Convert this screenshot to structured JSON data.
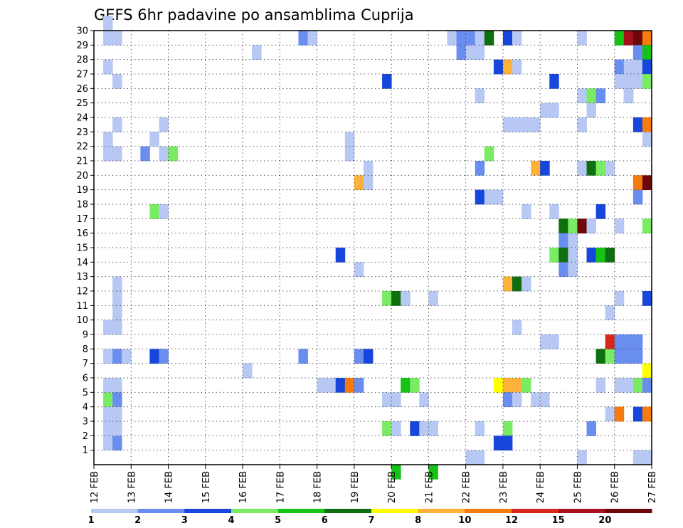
{
  "chart_data": {
    "type": "heatmap",
    "title": "GEFS 6hr padavine po ansamblima Cuprija",
    "xlabel": "",
    "ylabel": "",
    "x_labels": [
      "12 FEB",
      "13 FEB",
      "14 FEB",
      "15 FEB",
      "16 FEB",
      "17 FEB",
      "18 FEB",
      "19 FEB",
      "20 FEB",
      "21 FEB",
      "22 FEB",
      "23 FEB",
      "24 FEB",
      "25 FEB",
      "26 FEB",
      "27 FEB"
    ],
    "y_labels": [
      "1",
      "2",
      "3",
      "4",
      "5",
      "6",
      "7",
      "8",
      "9",
      "10",
      "11",
      "12",
      "13",
      "14",
      "15",
      "16",
      "17",
      "18",
      "19",
      "20",
      "21",
      "22",
      "23",
      "24",
      "25",
      "26",
      "27",
      "28",
      "29",
      "30"
    ],
    "x_range": [
      0,
      60
    ],
    "y_range": [
      0,
      30
    ],
    "grid": true,
    "colorbar": {
      "labels": [
        "1",
        "2",
        "3",
        "4",
        "5",
        "6",
        "7",
        "8",
        "10",
        "12",
        "15",
        "20"
      ],
      "colors": [
        "#b8c8f4",
        "#6a8ef0",
        "#1746dc",
        "#7aec64",
        "#17c217",
        "#0f6e0f",
        "#ffff00",
        "#ffb23a",
        "#f57a10",
        "#d8281c",
        "#a5101a",
        "#6e0808"
      ]
    },
    "cells": [
      [
        1,
        30,
        0
      ],
      [
        1,
        29,
        0
      ],
      [
        2,
        29,
        0
      ],
      [
        1,
        27,
        0
      ],
      [
        2,
        26,
        0
      ],
      [
        2,
        23,
        0
      ],
      [
        1,
        22,
        0
      ],
      [
        1,
        21,
        0
      ],
      [
        2,
        21,
        0
      ],
      [
        1,
        4,
        3
      ],
      [
        1,
        3,
        0
      ],
      [
        1,
        2,
        0
      ],
      [
        1,
        1,
        0
      ],
      [
        2,
        1,
        1
      ],
      [
        1,
        5,
        0
      ],
      [
        2,
        5,
        0
      ],
      [
        2,
        4,
        1
      ],
      [
        2,
        3,
        0
      ],
      [
        2,
        2,
        0
      ],
      [
        1,
        7,
        0
      ],
      [
        2,
        7,
        1
      ],
      [
        3,
        7,
        0
      ],
      [
        1,
        9,
        0
      ],
      [
        2,
        9,
        0
      ],
      [
        2,
        10,
        0
      ],
      [
        2,
        11,
        0
      ],
      [
        2,
        12,
        0
      ],
      [
        7,
        23,
        0
      ],
      [
        6,
        22,
        0
      ],
      [
        5,
        21,
        1
      ],
      [
        7,
        21,
        0
      ],
      [
        8,
        21,
        3
      ],
      [
        6,
        17,
        3
      ],
      [
        7,
        17,
        0
      ],
      [
        6,
        7,
        2
      ],
      [
        7,
        7,
        1
      ],
      [
        17,
        28,
        0
      ],
      [
        16,
        6,
        0
      ],
      [
        22,
        29,
        1
      ],
      [
        23,
        29,
        0
      ],
      [
        22,
        7,
        1
      ],
      [
        24,
        5,
        0
      ],
      [
        25,
        5,
        0
      ],
      [
        26,
        5,
        2
      ],
      [
        27,
        5,
        8
      ],
      [
        28,
        5,
        1
      ],
      [
        26,
        14,
        2
      ],
      [
        27,
        21,
        0
      ],
      [
        27,
        22,
        0
      ],
      [
        28,
        19,
        7
      ],
      [
        29,
        19,
        0
      ],
      [
        29,
        20,
        0
      ],
      [
        28,
        13,
        0
      ],
      [
        28,
        7,
        1
      ],
      [
        29,
        7,
        2
      ],
      [
        31,
        26,
        2
      ],
      [
        31,
        11,
        3
      ],
      [
        32,
        11,
        5
      ],
      [
        33,
        11,
        0
      ],
      [
        31,
        4,
        0
      ],
      [
        32,
        4,
        0
      ],
      [
        31,
        2,
        3
      ],
      [
        32,
        2,
        0
      ],
      [
        32,
        -1,
        4
      ],
      [
        33,
        5,
        4
      ],
      [
        34,
        5,
        3
      ],
      [
        34,
        2,
        2
      ],
      [
        35,
        2,
        0
      ],
      [
        36,
        2,
        0
      ],
      [
        35,
        4,
        0
      ],
      [
        36,
        11,
        0
      ],
      [
        36,
        -1,
        4
      ],
      [
        38,
        29,
        0
      ],
      [
        39,
        29,
        1
      ],
      [
        40,
        29,
        1
      ],
      [
        41,
        29,
        0
      ],
      [
        39,
        28,
        1
      ],
      [
        40,
        28,
        0
      ],
      [
        41,
        25,
        0
      ],
      [
        41,
        20,
        1
      ],
      [
        41,
        18,
        2
      ],
      [
        42,
        18,
        0
      ],
      [
        43,
        18,
        0
      ],
      [
        41,
        2,
        0
      ],
      [
        41,
        0,
        0
      ],
      [
        40,
        0,
        0
      ],
      [
        42,
        21,
        3
      ],
      [
        41,
        28,
        0
      ],
      [
        42,
        29,
        5
      ],
      [
        43,
        27,
        2
      ],
      [
        44,
        27,
        7
      ],
      [
        45,
        27,
        0
      ],
      [
        44,
        29,
        2
      ],
      [
        45,
        29,
        0
      ],
      [
        44,
        23,
        0
      ],
      [
        45,
        23,
        0
      ],
      [
        46,
        23,
        0
      ],
      [
        47,
        23,
        0
      ],
      [
        44,
        12,
        7
      ],
      [
        45,
        12,
        5
      ],
      [
        46,
        12,
        0
      ],
      [
        43,
        5,
        6
      ],
      [
        44,
        5,
        7
      ],
      [
        45,
        5,
        7
      ],
      [
        46,
        5,
        3
      ],
      [
        44,
        4,
        1
      ],
      [
        45,
        4,
        0
      ],
      [
        47,
        4,
        0
      ],
      [
        44,
        2,
        3
      ],
      [
        43,
        1,
        2
      ],
      [
        44,
        1,
        2
      ],
      [
        45,
        9,
        0
      ],
      [
        46,
        17,
        0
      ],
      [
        47,
        20,
        7
      ],
      [
        48,
        20,
        2
      ],
      [
        49,
        8,
        0
      ],
      [
        48,
        8,
        0
      ],
      [
        48,
        4,
        0
      ],
      [
        48,
        24,
        0
      ],
      [
        49,
        24,
        0
      ],
      [
        49,
        26,
        2
      ],
      [
        49,
        17,
        0
      ],
      [
        50,
        16,
        5
      ],
      [
        51,
        16,
        3
      ],
      [
        52,
        16,
        11
      ],
      [
        53,
        16,
        0
      ],
      [
        50,
        15,
        1
      ],
      [
        51,
        15,
        0
      ],
      [
        49,
        14,
        3
      ],
      [
        50,
        14,
        5
      ],
      [
        51,
        14,
        0
      ],
      [
        50,
        13,
        1
      ],
      [
        51,
        13,
        0
      ],
      [
        52,
        29,
        0
      ],
      [
        52,
        25,
        0
      ],
      [
        53,
        25,
        3
      ],
      [
        54,
        25,
        1
      ],
      [
        53,
        24,
        0
      ],
      [
        52,
        23,
        0
      ],
      [
        52,
        20,
        0
      ],
      [
        53,
        20,
        5
      ],
      [
        54,
        20,
        3
      ],
      [
        55,
        20,
        0
      ],
      [
        53,
        14,
        2
      ],
      [
        54,
        14,
        4
      ],
      [
        55,
        14,
        5
      ],
      [
        54,
        17,
        2
      ],
      [
        53,
        2,
        1
      ],
      [
        52,
        0,
        0
      ],
      [
        54,
        7,
        5
      ],
      [
        55,
        7,
        3
      ],
      [
        55,
        8,
        9
      ],
      [
        55,
        3,
        0
      ],
      [
        56,
        3,
        8
      ],
      [
        54,
        5,
        0
      ],
      [
        55,
        10,
        0
      ],
      [
        56,
        29,
        4
      ],
      [
        57,
        29,
        10
      ],
      [
        58,
        29,
        11
      ],
      [
        59,
        29,
        8
      ],
      [
        56,
        27,
        1
      ],
      [
        56,
        26,
        0
      ],
      [
        57,
        26,
        0
      ],
      [
        57,
        25,
        1
      ],
      [
        56,
        16,
        0
      ],
      [
        56,
        11,
        0
      ],
      [
        58,
        28,
        1
      ],
      [
        59,
        28,
        4
      ],
      [
        57,
        27,
        0
      ],
      [
        58,
        27,
        0
      ],
      [
        59,
        27,
        2
      ],
      [
        58,
        26,
        0
      ],
      [
        59,
        26,
        3
      ],
      [
        57,
        25,
        0
      ],
      [
        58,
        23,
        2
      ],
      [
        59,
        23,
        8
      ],
      [
        59,
        22,
        0
      ],
      [
        58,
        18,
        1
      ],
      [
        58,
        19,
        8
      ],
      [
        59,
        19,
        11
      ],
      [
        59,
        16,
        3
      ],
      [
        59,
        11,
        2
      ],
      [
        56,
        8,
        1
      ],
      [
        57,
        8,
        1
      ],
      [
        58,
        8,
        1
      ],
      [
        56,
        7,
        1
      ],
      [
        57,
        7,
        1
      ],
      [
        58,
        7,
        1
      ],
      [
        59,
        6,
        6
      ],
      [
        57,
        5,
        0
      ],
      [
        58,
        5,
        3
      ],
      [
        59,
        5,
        1
      ],
      [
        58,
        3,
        2
      ],
      [
        59,
        3,
        8
      ],
      [
        58,
        0,
        0
      ],
      [
        59,
        0,
        0
      ],
      [
        56,
        5,
        0
      ]
    ]
  }
}
